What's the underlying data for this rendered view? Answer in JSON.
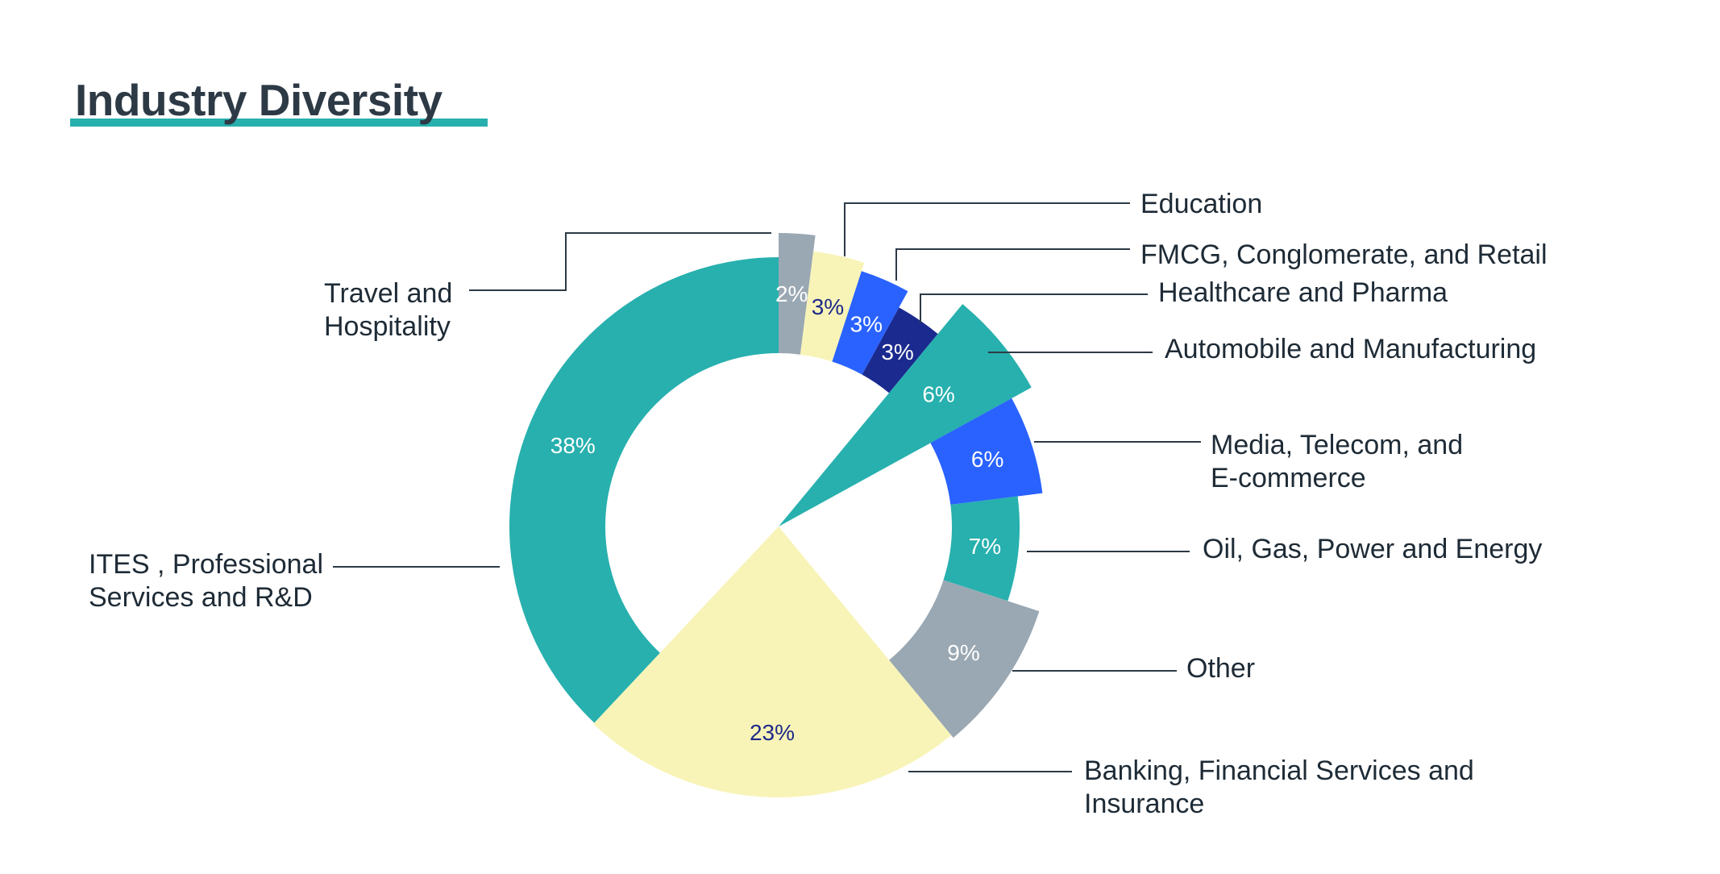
{
  "title": "Industry Diversity",
  "colors": {
    "title_text": "#2d3a46",
    "title_underline": "#27b0ae"
  },
  "chart_data": {
    "type": "pie",
    "title": "Industry Diversity",
    "variant": "variable-radius donut",
    "slices": [
      {
        "name": "Travel and Hospitality",
        "label_lines": [
          "Travel and",
          "Hospitality"
        ],
        "value": 2,
        "label": "2%",
        "color": "#9aa8b3",
        "label_color": "#ffffff"
      },
      {
        "name": "Education",
        "label_lines": [
          "Education"
        ],
        "value": 3,
        "label": "3%",
        "color": "#f8f4b8",
        "label_color": "#1e2a8a"
      },
      {
        "name": "FMCG, Conglomerate, and Retail",
        "label_lines": [
          "FMCG, Conglomerate, and Retail"
        ],
        "value": 3,
        "label": "3%",
        "color": "#2962ff",
        "label_color": "#ffffff"
      },
      {
        "name": "Healthcare and Pharma",
        "label_lines": [
          "Healthcare and Pharma"
        ],
        "value": 3,
        "label": "3%",
        "color": "#1a2a8f",
        "label_color": "#ffffff"
      },
      {
        "name": "Automobile and Manufacturing",
        "label_lines": [
          "Automobile and Manufacturing"
        ],
        "value": 6,
        "label": "6%",
        "color": "#27b0ae",
        "label_color": "#ffffff"
      },
      {
        "name": "Media, Telecom, and E-commerce",
        "label_lines": [
          "Media, Telecom, and",
          "E-commerce"
        ],
        "value": 6,
        "label": "6%",
        "color": "#2962ff",
        "label_color": "#ffffff"
      },
      {
        "name": "Oil, Gas, Power and Energy",
        "label_lines": [
          "Oil, Gas, Power and Energy"
        ],
        "value": 7,
        "label": "7%",
        "color": "#27b0ae",
        "label_color": "#ffffff"
      },
      {
        "name": "Other",
        "label_lines": [
          "Other"
        ],
        "value": 9,
        "label": "9%",
        "color": "#9aa8b3",
        "label_color": "#ffffff"
      },
      {
        "name": "Banking, Financial Services and Insurance",
        "label_lines": [
          "Banking, Financial Services and",
          "Insurance"
        ],
        "value": 23,
        "label": "23%",
        "color": "#f8f4b8",
        "label_color": "#1e2a8a"
      },
      {
        "name": "ITES , Professional Services and R&D",
        "label_lines": [
          "ITES , Professional",
          "Services and R&D"
        ],
        "value": 38,
        "label": "38%",
        "color": "#27b0ae",
        "label_color": "#ffffff"
      }
    ]
  }
}
